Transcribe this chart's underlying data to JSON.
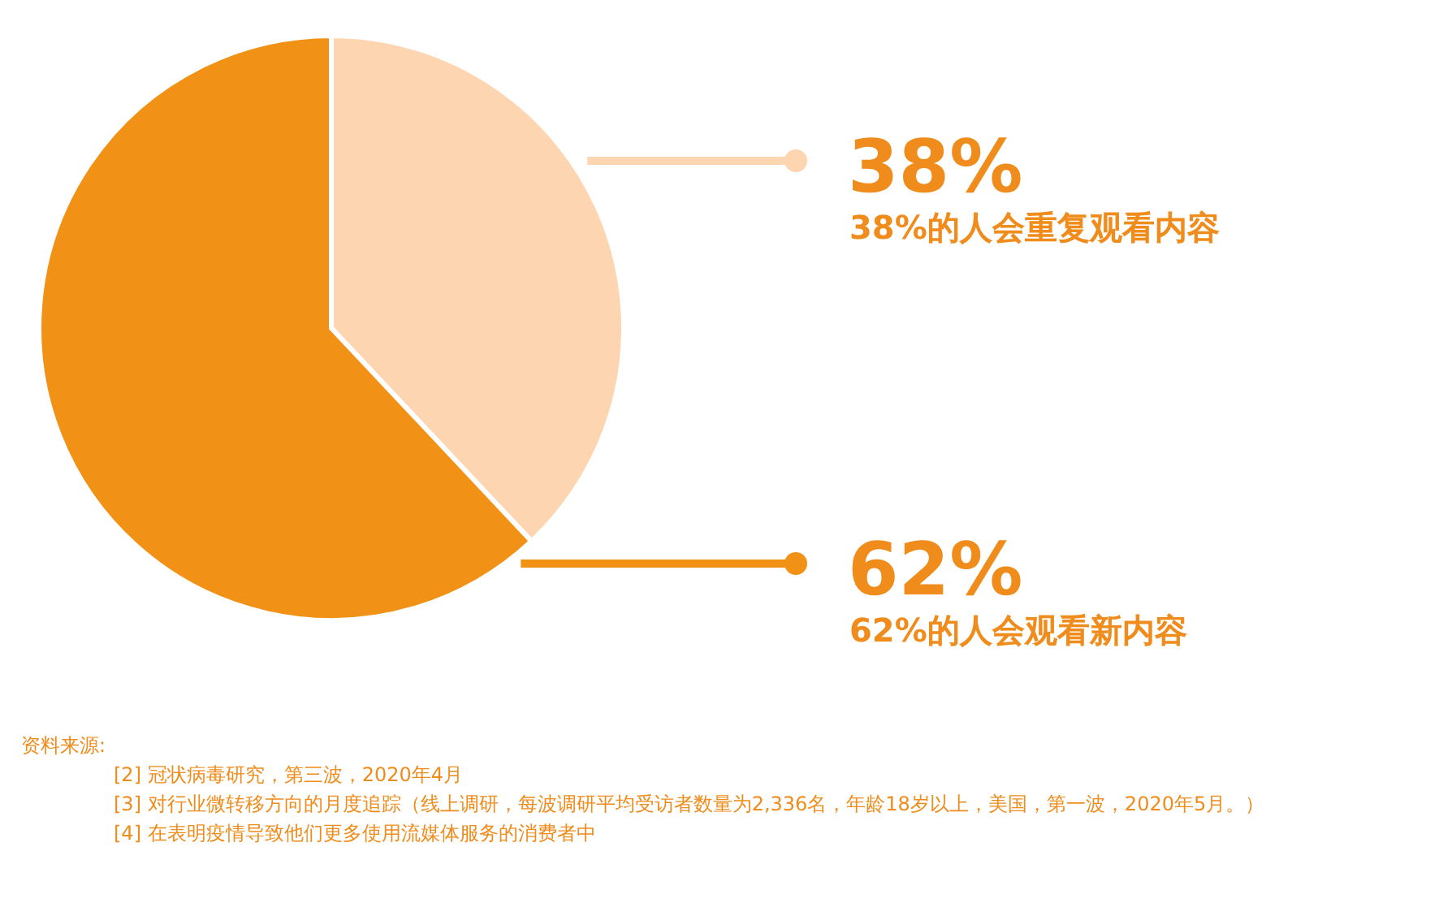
{
  "chart_data": {
    "type": "pie",
    "categories": [
      "38%的人会重复观看内容",
      "62%的人会观看新内容"
    ],
    "values": [
      38,
      62
    ],
    "colors": [
      "#fdd5b1",
      "#f19216"
    ],
    "value_labels": [
      "38%",
      "62%"
    ],
    "annotations": [
      "资料来源:",
      "[2] 冠状病毒研究，第三波，2020年4月",
      "[3] 对行业微转移方向的月度追踪（线上调研，每波调研平均受访者数量为2,336名，年龄18岁以上，美国，第一波，2020年5月。）",
      "[4] 在表明疫情导致他们更多使用流媒体服务的消费者中"
    ]
  }
}
